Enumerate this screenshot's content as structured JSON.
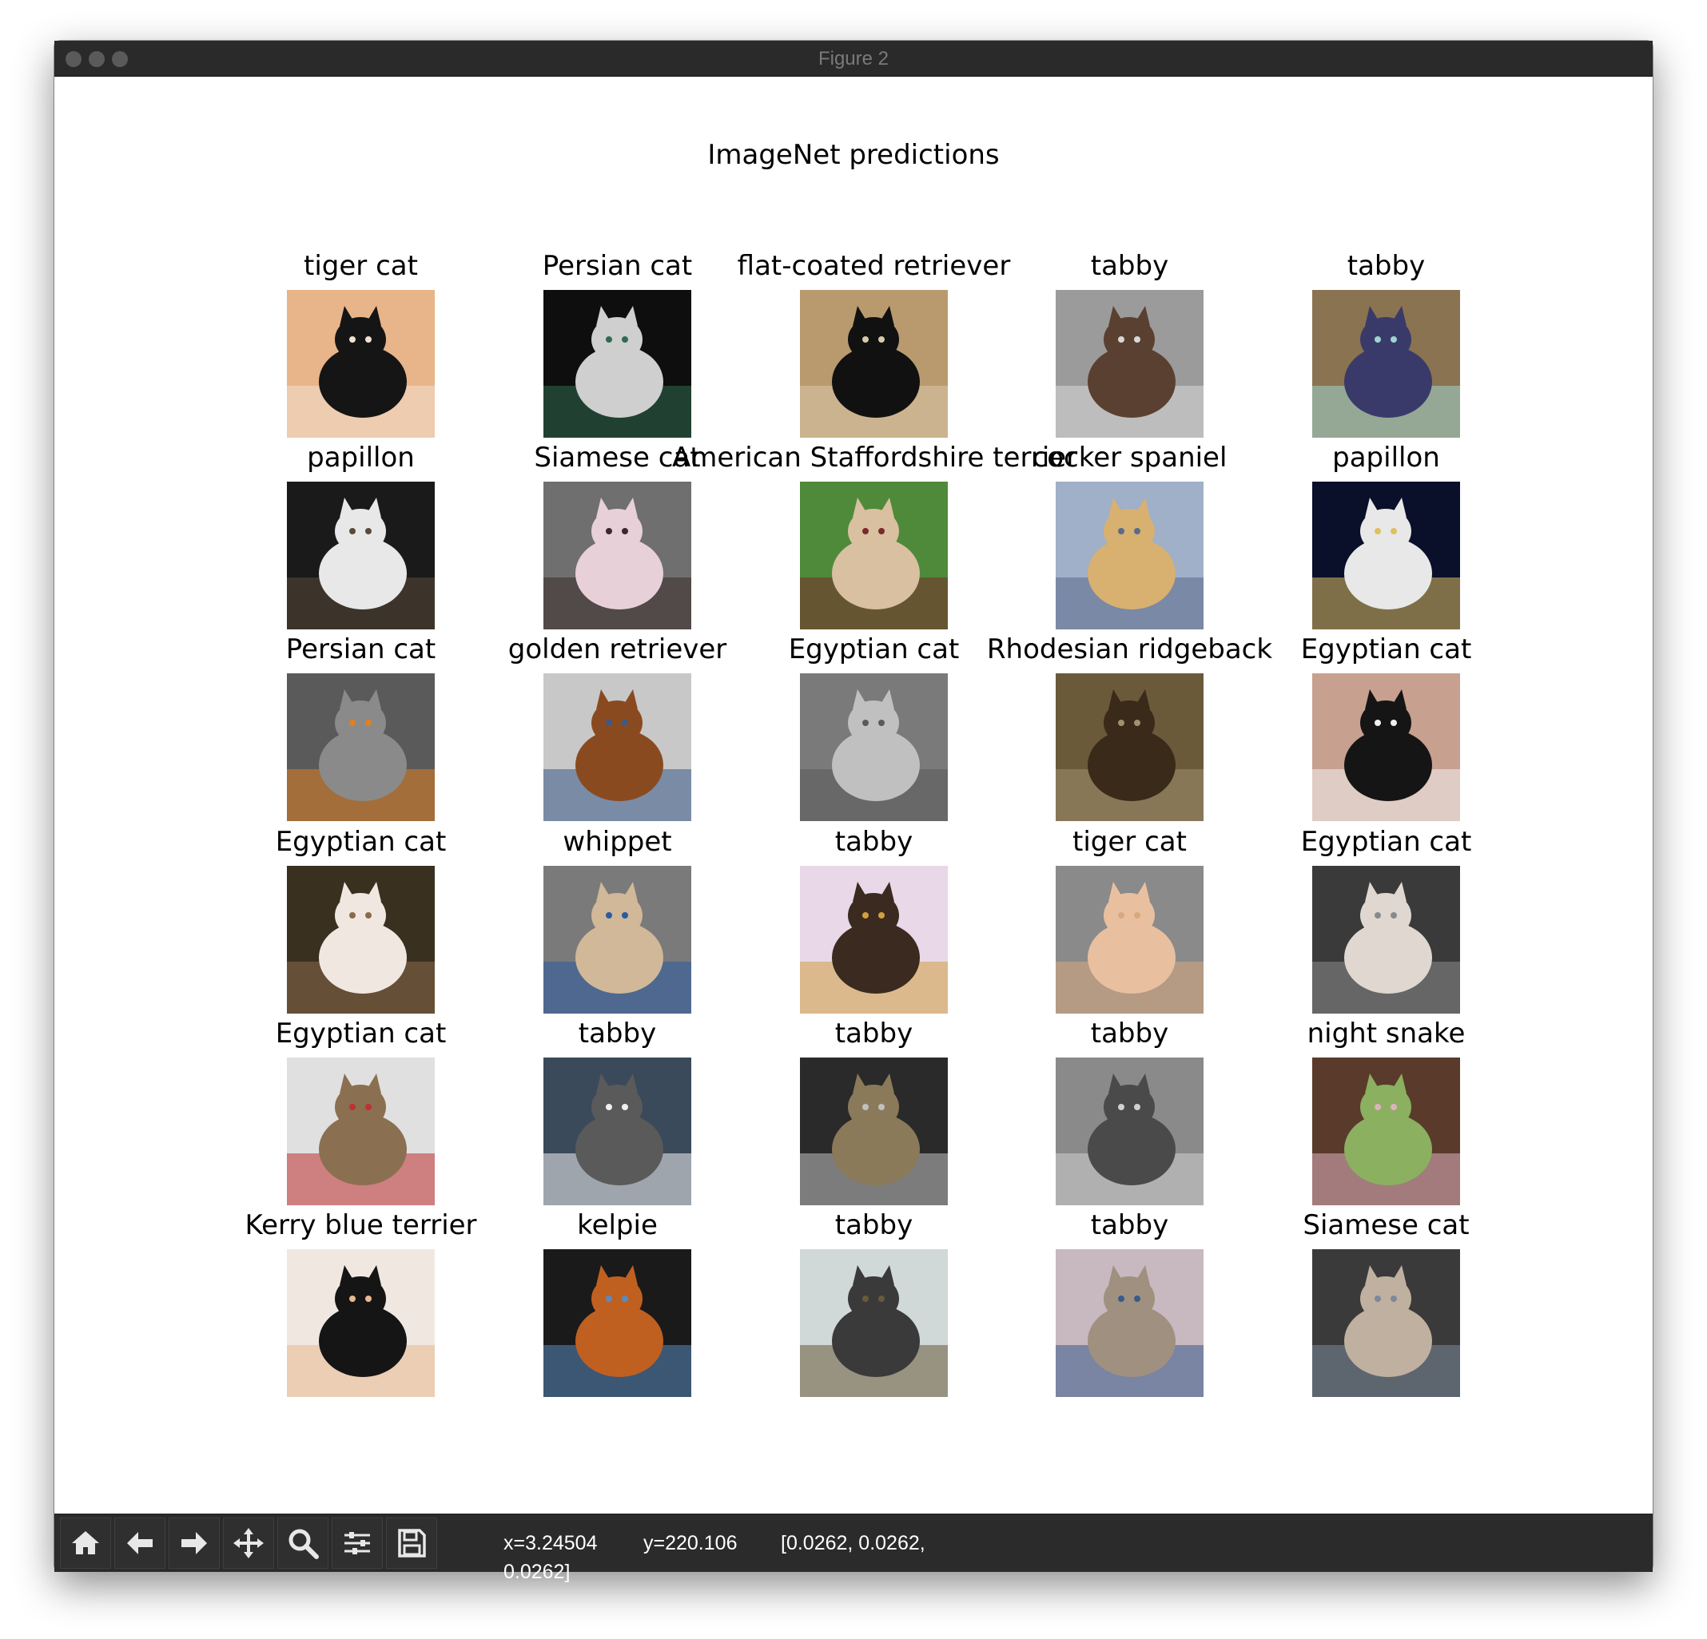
{
  "window": {
    "title": "Figure 2"
  },
  "figure": {
    "suptitle": "ImageNet predictions"
  },
  "grid": [
    {
      "label": "tiger cat"
    },
    {
      "label": "Persian cat"
    },
    {
      "label": "flat-coated retriever"
    },
    {
      "label": "tabby"
    },
    {
      "label": "tabby"
    },
    {
      "label": "papillon"
    },
    {
      "label": "Siamese cat"
    },
    {
      "label": "American Staffordshire terrier"
    },
    {
      "label": "cocker spaniel"
    },
    {
      "label": "papillon"
    },
    {
      "label": "Persian cat"
    },
    {
      "label": "golden retriever"
    },
    {
      "label": "Egyptian cat"
    },
    {
      "label": "Rhodesian ridgeback"
    },
    {
      "label": "Egyptian cat"
    },
    {
      "label": "Egyptian cat"
    },
    {
      "label": "whippet"
    },
    {
      "label": "tabby"
    },
    {
      "label": "tiger cat"
    },
    {
      "label": "Egyptian cat"
    },
    {
      "label": "Egyptian cat"
    },
    {
      "label": "tabby"
    },
    {
      "label": "tabby"
    },
    {
      "label": "tabby"
    },
    {
      "label": "night snake"
    },
    {
      "label": "Kerry blue terrier"
    },
    {
      "label": "kelpie"
    },
    {
      "label": "tabby"
    },
    {
      "label": "tabby"
    },
    {
      "label": "Siamese cat"
    }
  ],
  "thumb_colors": [
    [
      "#e8b48a",
      "#151515",
      "#f2e0d0"
    ],
    [
      "#0e0e0e",
      "#cfcfcf",
      "#2f6b4f"
    ],
    [
      "#b99a6f",
      "#111111",
      "#d8c9a8"
    ],
    [
      "#9b9b9b",
      "#5a4030",
      "#d8d8d8"
    ],
    [
      "#8a7350",
      "#3a3a6a",
      "#9fd3d0"
    ],
    [
      "#1a1a1a",
      "#e8e8e8",
      "#5a4a3a"
    ],
    [
      "#6f6f6f",
      "#e8d0d8",
      "#3a2a2a"
    ],
    [
      "#4f8a3a",
      "#d8c0a0",
      "#7a2a2a"
    ],
    [
      "#9fb0c8",
      "#d8b070",
      "#5a6a8a"
    ],
    [
      "#0a0f2a",
      "#e8e8e8",
      "#e0c060"
    ],
    [
      "#5a5a5a",
      "#8a8a8a",
      "#e08020"
    ],
    [
      "#c8c8c8",
      "#8a4a20",
      "#3a5a8a"
    ],
    [
      "#7a7a7a",
      "#c0c0c0",
      "#5a5a5a"
    ],
    [
      "#6a5a3a",
      "#3a2a1a",
      "#a09070"
    ],
    [
      "#c8a090",
      "#151515",
      "#f0f0f0"
    ],
    [
      "#3a3020",
      "#f0e8e0",
      "#8a6a4a"
    ],
    [
      "#7a7a7a",
      "#d0b898",
      "#2a5aa0"
    ],
    [
      "#e8d8e8",
      "#3a2a20",
      "#d0a040"
    ],
    [
      "#8a8a8a",
      "#e8c0a0",
      "#d8a880"
    ],
    [
      "#3a3a3a",
      "#e0d8d0",
      "#8a8a8a"
    ],
    [
      "#e0e0e0",
      "#8a7050",
      "#c03030"
    ],
    [
      "#3a4a5a",
      "#5a5a5a",
      "#f0f0f0"
    ],
    [
      "#2a2a2a",
      "#8a7a5a",
      "#c0c0c0"
    ],
    [
      "#8a8a8a",
      "#4a4a4a",
      "#d0d0d0"
    ],
    [
      "#5a3a2a",
      "#8ab060",
      "#e0b0c0"
    ],
    [
      "#f0e8e0",
      "#151515",
      "#e8b890"
    ],
    [
      "#1a1a1a",
      "#c06020",
      "#5a8ac0"
    ],
    [
      "#d0d8d8",
      "#3a3a3a",
      "#6a5a3a"
    ],
    [
      "#c8b8c0",
      "#a09080",
      "#3a5a8a"
    ],
    [
      "#3a3a3a",
      "#c0b0a0",
      "#7a8a9a"
    ]
  ],
  "toolbar": {
    "icons": [
      "home-icon",
      "back-arrow-icon",
      "forward-arrow-icon",
      "pan-icon",
      "zoom-icon",
      "subplots-icon",
      "save-icon"
    ],
    "status_x": "x=3.24504",
    "status_y": "y=220.106",
    "status_value": "[0.0262, 0.0262,",
    "status_value_line2": "0.0262]"
  }
}
